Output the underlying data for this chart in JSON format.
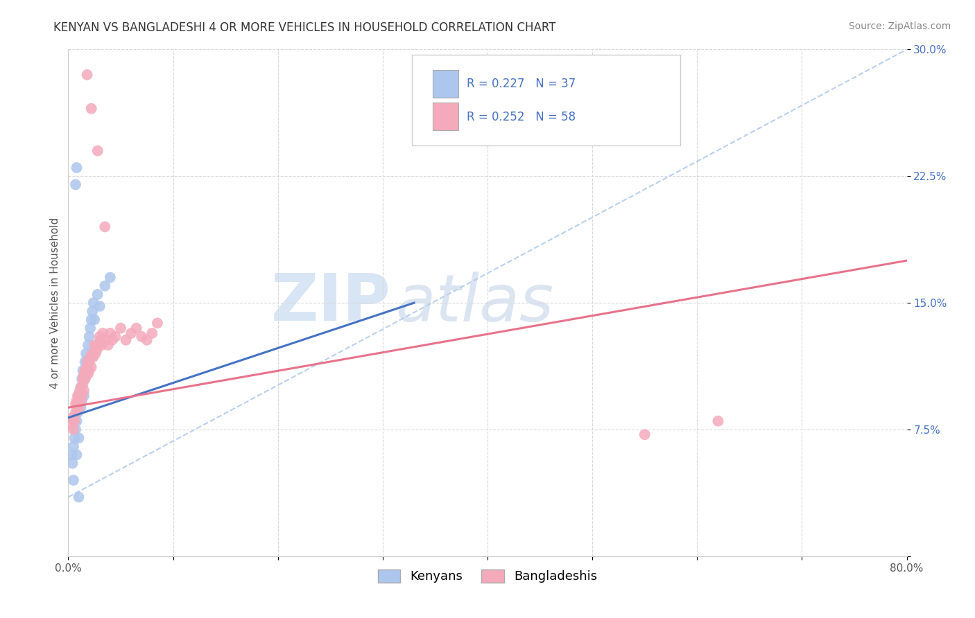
{
  "title": "KENYAN VS BANGLADESHI 4 OR MORE VEHICLES IN HOUSEHOLD CORRELATION CHART",
  "source": "Source: ZipAtlas.com",
  "ylabel": "4 or more Vehicles in Household",
  "xlim": [
    0.0,
    0.8
  ],
  "ylim": [
    0.0,
    0.3
  ],
  "xticks": [
    0.0,
    0.1,
    0.2,
    0.3,
    0.4,
    0.5,
    0.6,
    0.7,
    0.8
  ],
  "yticks": [
    0.0,
    0.075,
    0.15,
    0.225,
    0.3
  ],
  "legend_blue_r": "R = 0.227",
  "legend_blue_n": "N = 37",
  "legend_pink_r": "R = 0.252",
  "legend_pink_n": "N = 58",
  "legend_label_blue": "Kenyans",
  "legend_label_pink": "Bangladeshis",
  "blue_color": "#adc6ed",
  "pink_color": "#f4aabb",
  "blue_line_color": "#4472c4",
  "pink_line_color": "#e8728a",
  "dashed_line_color": "#b8d0ee",
  "watermark_zip": "ZIP",
  "watermark_atlas": "atlas",
  "background_color": "#ffffff",
  "grid_color": "#d8d8d8",
  "blue_line_x": [
    0.0,
    0.33
  ],
  "blue_line_y": [
    0.082,
    0.15
  ],
  "pink_line_x": [
    0.0,
    0.8
  ],
  "pink_line_y": [
    0.088,
    0.175
  ],
  "dashed_line_x": [
    0.0,
    0.8
  ],
  "dashed_line_y": [
    0.035,
    0.3
  ]
}
